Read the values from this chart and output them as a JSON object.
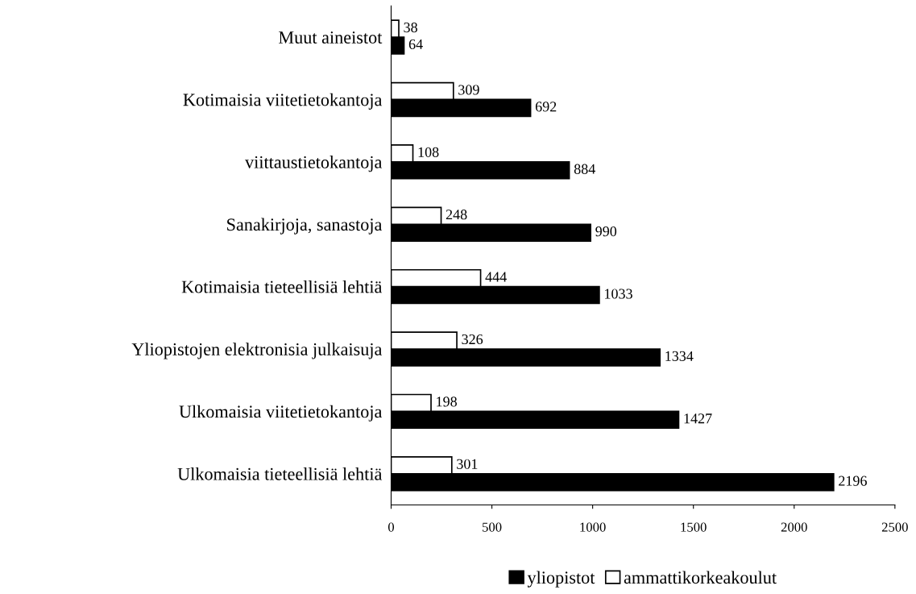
{
  "chart_data": {
    "type": "bar",
    "orientation": "horizontal",
    "categories": [
      "Muut aineistot",
      "Kotimaisia viitetietokantoja",
      "viittaustietokantoja",
      "Sanakirjoja, sanastoja",
      "Kotimaisia tieteellisiä lehtiä",
      "Yliopistojen elektronisia julkaisuja",
      "Ulkomaisia viitetietokantoja",
      "Ulkomaisia tieteellisiä lehtiä"
    ],
    "series": [
      {
        "name": "yliopistot",
        "color": "#000000",
        "values": [
          64,
          692,
          884,
          990,
          1033,
          1334,
          1427,
          2196
        ]
      },
      {
        "name": "ammattikorkeakoulut",
        "color": "#ffffff",
        "values": [
          38,
          309,
          108,
          248,
          444,
          326,
          198,
          301
        ]
      }
    ],
    "xlim": [
      0,
      2500
    ],
    "xticks": [
      0,
      500,
      1000,
      1500,
      2000,
      2500
    ],
    "data_labels": true,
    "grid": false,
    "legend": "bottom"
  }
}
